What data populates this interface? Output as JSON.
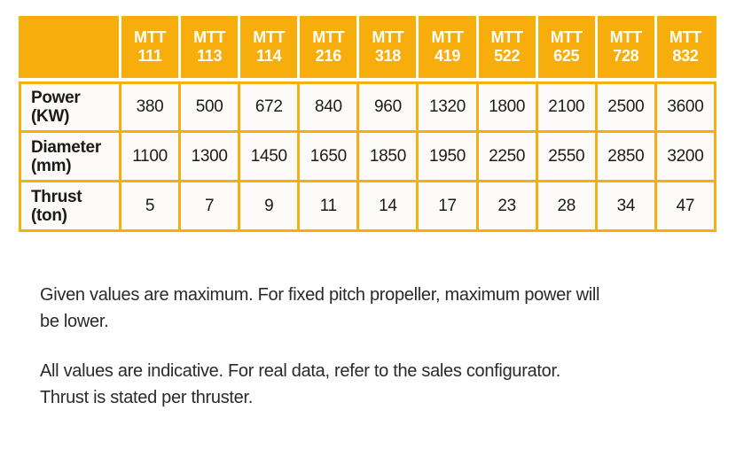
{
  "colors": {
    "accent": "#F7AD0B",
    "border": "#F6AF10",
    "header-text": "#FFFFFF",
    "table-text": "#1B1B1B",
    "body-text": "#2A2A2A",
    "cell-bg": "#FCFBF9",
    "page-bg": "#FFFFFF"
  },
  "table": {
    "corner_label": "",
    "columns": [
      {
        "brand": "MTT",
        "model": "111"
      },
      {
        "brand": "MTT",
        "model": "113"
      },
      {
        "brand": "MTT",
        "model": "114"
      },
      {
        "brand": "MTT",
        "model": "216"
      },
      {
        "brand": "MTT",
        "model": "318"
      },
      {
        "brand": "MTT",
        "model": "419"
      },
      {
        "brand": "MTT",
        "model": "522"
      },
      {
        "brand": "MTT",
        "model": "625"
      },
      {
        "brand": "MTT",
        "model": "728"
      },
      {
        "brand": "MTT",
        "model": "832"
      }
    ],
    "rows": [
      {
        "label": "Power",
        "unit": "(KW)",
        "values": [
          380,
          500,
          672,
          840,
          960,
          1320,
          1800,
          2100,
          2500,
          3600
        ]
      },
      {
        "label": "Diameter",
        "unit": "(mm)",
        "values": [
          1100,
          1300,
          1450,
          1650,
          1850,
          1950,
          2250,
          2550,
          2850,
          3200
        ]
      },
      {
        "label": "Thrust",
        "unit": "(ton)",
        "values": [
          5,
          7,
          9,
          11,
          14,
          17,
          23,
          28,
          34,
          47
        ]
      }
    ]
  },
  "notes": [
    {
      "lines": [
        "Given values are maximum. For fixed pitch propeller, maximum power will",
        "be lower."
      ]
    },
    {
      "lines": [
        "All values are indicative. For real data, refer to the sales configurator.",
        "Thrust is stated per thruster."
      ]
    }
  ]
}
